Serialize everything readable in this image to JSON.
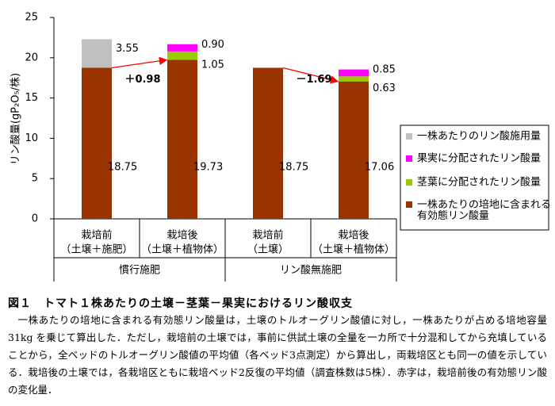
{
  "chart_data": {
    "type": "stacked_bar",
    "y_label": "リン酸量(gP₂O₅/株)",
    "categories": [
      [
        "栽培前",
        "（土壌＋施肥）"
      ],
      [
        "栽培後",
        "（土壌＋植物体）"
      ],
      [
        "栽培前",
        "（土壌）"
      ],
      [
        "栽培後",
        "（土壌＋植物体）"
      ]
    ],
    "groups": [
      "慣行施肥",
      "リン酸無施肥"
    ],
    "ylim": [
      0,
      25
    ],
    "yticks": [
      0,
      5,
      10,
      15,
      20,
      25
    ],
    "series": [
      {
        "name": "一株あたりの培地に含まれる有効態リン酸量",
        "color": "#993300",
        "values": [
          18.75,
          19.73,
          18.75,
          17.06
        ],
        "value_labels": [
          "18.75",
          "19.73",
          "18.75",
          "17.06"
        ]
      },
      {
        "name": "茎葉に分配されたリン酸量",
        "color": "#99cc00",
        "values": [
          null,
          1.05,
          null,
          0.63
        ],
        "value_labels": [
          null,
          "1.05",
          null,
          "0.63"
        ]
      },
      {
        "name": "果実に分配されたリン酸量",
        "color": "#ff00ff",
        "values": [
          null,
          0.9,
          null,
          0.85
        ],
        "value_labels": [
          null,
          "0.90",
          null,
          "0.85"
        ]
      },
      {
        "name": "一株あたりのリン酸施用量",
        "color": "#c0c0c0",
        "values": [
          3.55,
          null,
          null,
          null
        ],
        "value_labels": [
          "3.55",
          null,
          null,
          null
        ]
      }
    ],
    "annotations": [
      "＋0.98",
      "－1.69"
    ],
    "annotation_color": "#ff0000"
  },
  "caption": {
    "title": "図１　トマト１株あたりの土壌－茎葉－果実におけるリン酸収支",
    "body": "一株あたりの培地に含まれる有効態リン酸量は，土壌のトルオーグリン酸値に対し，一株あたりが占める培地容量 31kg を乗じて算出した．ただし，栽培前の土壌では，事前に供試土壌の全量を一カ所で十分混和してから充填していることから，全ベッドのトルオーグリン酸値の平均値（各ベッド3点測定）から算出し，両栽培区とも同一の値を示している．栽培後の土壌では，各栽培区ともに栽培ベッド2反復の平均値（調査株数は5株）．赤字は，栽培前後の有効態リン酸の変化量．"
  }
}
